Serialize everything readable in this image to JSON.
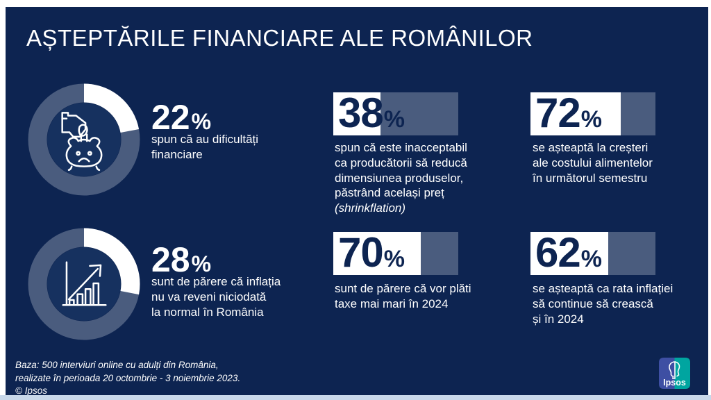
{
  "title": "AȘTEPTĂRILE FINANCIARE ALE ROMÂNILOR",
  "symbols": {
    "percent": "%"
  },
  "stats": {
    "donuts": [
      {
        "value": 22,
        "label": "spun că au dificultăți\nfinanciare",
        "icon": "hand-coin-piggy-bank-icon"
      },
      {
        "value": 28,
        "label": "sunt de părere că inflația\nnu va reveni niciodată\nla normal în România",
        "icon": "rising-chart-arrow-icon"
      }
    ],
    "bars": [
      {
        "value": 38,
        "label": "spun că este inacceptabil\nca producătorii să reducă\ndimensiunea produselor,\npăstrând același preț",
        "label_italic": "(shrinkflation)"
      },
      {
        "value": 72,
        "label": "se așteaptă la creșteri\nale costului alimentelor\nîn următorul semestru"
      },
      {
        "value": 70,
        "label": "sunt de părere că vor plăti\ntaxe mai mari în 2024"
      },
      {
        "value": 62,
        "label": "se așteaptă ca rata inflației\nsă continue să crească\nși în 2024"
      }
    ]
  },
  "footer": {
    "text": "Baza: 500 interviuri online cu adulți din România,\nrealizate în perioada 20 octombrie - 3 noiembrie 2023.\n© Ipsos"
  },
  "logo": {
    "label": "Ipsos"
  },
  "colors": {
    "background_navy": "#0d2451",
    "donut_track": "#4a5c7e",
    "donut_fill": "#ffffff",
    "donut_hole": "#16315f",
    "bar_track": "#4a5c7e",
    "bar_fill": "#ffffff",
    "bar_number": "#0d2451",
    "text": "#ffffff",
    "bottom_strip": "#c8d8ea",
    "ipsos_blue": "#3e4fa3",
    "ipsos_teal": "#00a5a0"
  },
  "chart_data": {
    "type": "bar",
    "title": "AȘTEPTĂRILE FINANCIARE ALE ROMÂNILOR",
    "unit": "%",
    "ylim": [
      0,
      100
    ],
    "categories": [
      "spun că au dificultăți financiare",
      "sunt de părere că inflația nu va reveni niciodată la normal în România",
      "spun că este inacceptabil ca producătorii să reducă dimensiunea produselor, păstrând același preț (shrinkflation)",
      "se așteaptă la creșteri ale costului alimentelor în următorul semestru",
      "sunt de părere că vor plăti taxe mai mari în 2024",
      "se așteaptă ca rata inflației să continue să crească și în 2024"
    ],
    "values": [
      22,
      28,
      38,
      72,
      70,
      62
    ],
    "notes": "Two values shown as donut charts (22, 28), four as horizontal filled bars (38, 72, 70, 62). Base: 500 online interviews, Romania, 20 Oct - 3 Nov 2023."
  }
}
